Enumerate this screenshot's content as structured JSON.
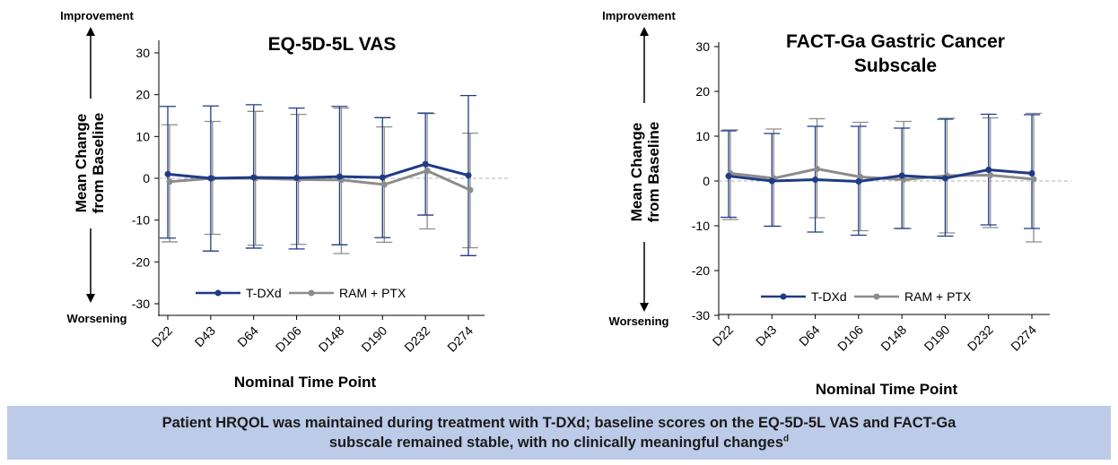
{
  "colors": {
    "tdxd": "#1f3b86",
    "ram": "#8c8c8c",
    "banner_bg": "#bccbe8",
    "zero_line": "#b3b3b3"
  },
  "side_labels": {
    "improvement": "Improvement",
    "worsening": "Worsening"
  },
  "chart_data": [
    {
      "type": "line",
      "title": "EQ-5D-5L VAS",
      "ylabel_lines": [
        "Mean Change",
        "from Baseline"
      ],
      "xlabel": "Nominal Time Point",
      "categories": [
        "D22",
        "D43",
        "D64",
        "D106",
        "D148",
        "D190",
        "D232",
        "D274"
      ],
      "ylim": [
        -33,
        33
      ],
      "yticks": [
        -30,
        -20,
        -10,
        0,
        10,
        20,
        30
      ],
      "legend": {
        "position": "bottom-center"
      },
      "series": [
        {
          "name": "T-DXd",
          "values": [
            1.0,
            0.0,
            0.2,
            0.1,
            0.4,
            0.2,
            3.4,
            0.7
          ],
          "err_low": [
            -14.3,
            -17.4,
            -16.7,
            -16.9,
            -15.9,
            -14.2,
            -8.8,
            -18.5
          ],
          "err_high": [
            17.2,
            17.3,
            17.6,
            16.8,
            17.2,
            14.5,
            15.6,
            19.8
          ]
        },
        {
          "name": "RAM + PTX",
          "values": [
            -0.8,
            0.0,
            0.0,
            -0.3,
            -0.4,
            -1.5,
            1.8,
            -2.8
          ],
          "err_low": [
            -15.2,
            -13.4,
            -16.0,
            -15.8,
            -18.0,
            -15.3,
            -12.1,
            -16.6
          ],
          "err_high": [
            12.8,
            13.6,
            16.0,
            15.3,
            16.8,
            12.3,
            15.5,
            10.8
          ]
        }
      ]
    },
    {
      "type": "line",
      "title_lines": [
        "FACT-Ga Gastric Cancer",
        "Subscale"
      ],
      "ylabel_lines": [
        "Mean Change",
        "from Baseline"
      ],
      "xlabel": "Nominal Time Point",
      "categories": [
        "D22",
        "D43",
        "D64",
        "D106",
        "D148",
        "D190",
        "D232",
        "D274"
      ],
      "ylim": [
        -31,
        31
      ],
      "yticks": [
        -30,
        -20,
        -10,
        0,
        10,
        20,
        30
      ],
      "legend": {
        "position": "bottom-center"
      },
      "series": [
        {
          "name": "T-DXd",
          "values": [
            1.1,
            0.0,
            0.3,
            -0.1,
            1.2,
            0.6,
            2.5,
            1.7
          ],
          "err_low": [
            -8.1,
            -10.1,
            -11.4,
            -12.1,
            -10.6,
            -12.3,
            -9.8,
            -10.6
          ],
          "err_high": [
            11.2,
            10.6,
            12.2,
            12.2,
            11.8,
            13.8,
            14.9,
            14.8
          ]
        },
        {
          "name": "RAM + PTX",
          "values": [
            1.7,
            0.6,
            2.7,
            0.9,
            0.3,
            1.2,
            1.3,
            0.4
          ],
          "err_low": [
            -8.6,
            -10.1,
            -8.2,
            -11.1,
            -10.6,
            -11.6,
            -10.4,
            -13.6
          ],
          "err_high": [
            11.4,
            11.6,
            13.9,
            13.1,
            13.3,
            14.0,
            14.1,
            15.1
          ]
        }
      ]
    }
  ],
  "banner": {
    "line1": "Patient HRQOL was maintained during treatment with T-DXd; baseline scores on the EQ-5D-5L VAS and FACT-Ga",
    "line2": "subscale remained stable, with no clinically meaningful changes",
    "superscript": "d"
  }
}
